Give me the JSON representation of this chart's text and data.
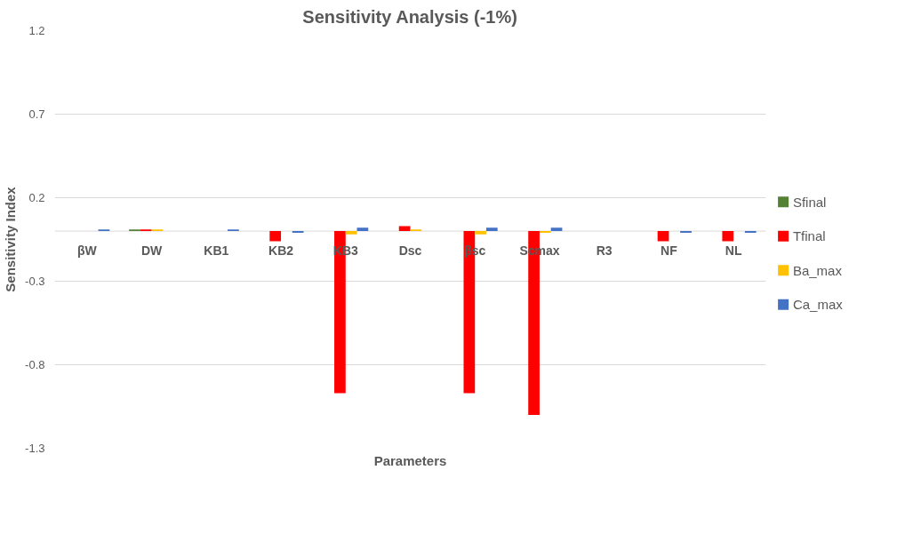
{
  "chart_data": {
    "type": "bar",
    "title": "Sensitivity Analysis (-1%)",
    "xlabel": "Parameters",
    "ylabel": "Sensitivity Index",
    "categories": [
      "βW",
      "DW",
      "KB1",
      "KB2",
      "KB3",
      "Dsc",
      "βsc",
      "Scmax",
      "R3",
      "NF",
      "NL"
    ],
    "series": [
      {
        "name": "Sfinal",
        "color": "#548235",
        "values": [
          0,
          0.01,
          0,
          0,
          0,
          0,
          0,
          0,
          0,
          0,
          0
        ]
      },
      {
        "name": "Tfinal",
        "color": "#ff0000",
        "values": [
          0,
          0.01,
          0,
          -0.06,
          -0.97,
          0.03,
          -0.97,
          -1.1,
          0,
          -0.06,
          -0.06
        ]
      },
      {
        "name": "Ba_max",
        "color": "#ffc000",
        "values": [
          0,
          0.01,
          0,
          0,
          -0.02,
          0.01,
          -0.02,
          -0.01,
          0,
          0,
          0
        ]
      },
      {
        "name": "Ca_max",
        "color": "#4472c4",
        "values": [
          0.01,
          0,
          0.01,
          -0.01,
          0.02,
          0,
          0.02,
          0.02,
          0,
          -0.01,
          -0.01
        ]
      }
    ],
    "ylim": [
      -1.3,
      1.2
    ],
    "yticks": [
      -1.3,
      -0.8,
      -0.3,
      0.2,
      0.7,
      1.2
    ],
    "grid": "y",
    "legend": "right"
  }
}
